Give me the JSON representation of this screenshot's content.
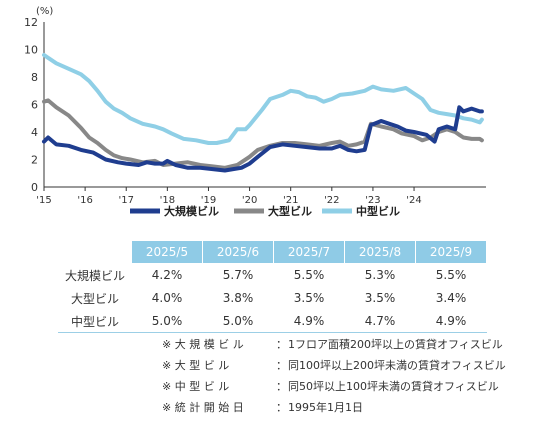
{
  "chart_data": {
    "type": "line",
    "y_unit": "(%)",
    "ylim": [
      0,
      12
    ],
    "y_ticks": [
      "0",
      "2",
      "4",
      "6",
      "8",
      "10",
      "12"
    ],
    "x_range": [
      2015.0,
      2025.75
    ],
    "x_ticks": [
      {
        "x": 2015,
        "label": "'15"
      },
      {
        "x": 2016,
        "label": "'16"
      },
      {
        "x": 2017,
        "label": "'17"
      },
      {
        "x": 2018,
        "label": "'18"
      },
      {
        "x": 2019,
        "label": "'19"
      },
      {
        "x": 2020,
        "label": "'20"
      },
      {
        "x": 2021,
        "label": "'21"
      },
      {
        "x": 2022,
        "label": "'22"
      },
      {
        "x": 2023,
        "label": "'23"
      },
      {
        "x": 2024,
        "label": "'24"
      }
    ],
    "grid": false,
    "legend_position": "bottom",
    "series": [
      {
        "name": "大規模ビル",
        "color": "#1f3d8f",
        "points": [
          [
            2015.0,
            3.3
          ],
          [
            2015.1,
            3.6
          ],
          [
            2015.3,
            3.1
          ],
          [
            2015.6,
            3.0
          ],
          [
            2015.9,
            2.7
          ],
          [
            2016.2,
            2.5
          ],
          [
            2016.5,
            2.0
          ],
          [
            2016.8,
            1.8
          ],
          [
            2017.0,
            1.7
          ],
          [
            2017.3,
            1.6
          ],
          [
            2017.5,
            1.8
          ],
          [
            2017.7,
            1.7
          ],
          [
            2017.9,
            1.7
          ],
          [
            2018.0,
            1.9
          ],
          [
            2018.2,
            1.6
          ],
          [
            2018.5,
            1.4
          ],
          [
            2018.8,
            1.4
          ],
          [
            2019.1,
            1.3
          ],
          [
            2019.4,
            1.2
          ],
          [
            2019.6,
            1.3
          ],
          [
            2019.8,
            1.4
          ],
          [
            2020.0,
            1.7
          ],
          [
            2020.2,
            2.2
          ],
          [
            2020.5,
            2.9
          ],
          [
            2020.8,
            3.1
          ],
          [
            2021.1,
            3.0
          ],
          [
            2021.4,
            2.9
          ],
          [
            2021.7,
            2.8
          ],
          [
            2022.0,
            2.8
          ],
          [
            2022.2,
            3.0
          ],
          [
            2022.4,
            2.7
          ],
          [
            2022.6,
            2.6
          ],
          [
            2022.8,
            2.7
          ],
          [
            2022.95,
            4.5
          ],
          [
            2023.2,
            4.8
          ],
          [
            2023.4,
            4.6
          ],
          [
            2023.6,
            4.4
          ],
          [
            2023.8,
            4.1
          ],
          [
            2024.0,
            4.0
          ],
          [
            2024.3,
            3.8
          ],
          [
            2024.5,
            3.3
          ],
          [
            2024.6,
            4.2
          ],
          [
            2024.8,
            4.4
          ],
          [
            2025.0,
            4.2
          ],
          [
            2025.1,
            5.8
          ],
          [
            2025.2,
            5.5
          ],
          [
            2025.4,
            5.7
          ],
          [
            2025.6,
            5.5
          ],
          [
            2025.65,
            5.5
          ]
        ]
      },
      {
        "name": "大型ビル",
        "color": "#888888",
        "points": [
          [
            2015.0,
            6.2
          ],
          [
            2015.1,
            6.3
          ],
          [
            2015.3,
            5.8
          ],
          [
            2015.6,
            5.2
          ],
          [
            2015.9,
            4.3
          ],
          [
            2016.1,
            3.6
          ],
          [
            2016.3,
            3.2
          ],
          [
            2016.5,
            2.7
          ],
          [
            2016.7,
            2.3
          ],
          [
            2016.9,
            2.1
          ],
          [
            2017.1,
            2.0
          ],
          [
            2017.4,
            1.8
          ],
          [
            2017.7,
            1.9
          ],
          [
            2017.9,
            1.6
          ],
          [
            2018.2,
            1.7
          ],
          [
            2018.5,
            1.8
          ],
          [
            2018.8,
            1.6
          ],
          [
            2019.1,
            1.5
          ],
          [
            2019.4,
            1.4
          ],
          [
            2019.7,
            1.6
          ],
          [
            2020.0,
            2.2
          ],
          [
            2020.2,
            2.7
          ],
          [
            2020.5,
            3.0
          ],
          [
            2020.8,
            3.2
          ],
          [
            2021.1,
            3.2
          ],
          [
            2021.4,
            3.1
          ],
          [
            2021.7,
            3.0
          ],
          [
            2022.0,
            3.2
          ],
          [
            2022.2,
            3.3
          ],
          [
            2022.4,
            3.0
          ],
          [
            2022.6,
            3.1
          ],
          [
            2022.8,
            3.3
          ],
          [
            2022.95,
            4.6
          ],
          [
            2023.2,
            4.4
          ],
          [
            2023.5,
            4.2
          ],
          [
            2023.7,
            3.9
          ],
          [
            2024.0,
            3.7
          ],
          [
            2024.2,
            3.4
          ],
          [
            2024.4,
            3.6
          ],
          [
            2024.6,
            4.0
          ],
          [
            2024.8,
            4.2
          ],
          [
            2025.0,
            4.0
          ],
          [
            2025.1,
            3.8
          ],
          [
            2025.2,
            3.6
          ],
          [
            2025.4,
            3.5
          ],
          [
            2025.6,
            3.5
          ],
          [
            2025.65,
            3.4
          ]
        ]
      },
      {
        "name": "中型ビル",
        "color": "#8fcfe6",
        "points": [
          [
            2015.0,
            9.6
          ],
          [
            2015.1,
            9.4
          ],
          [
            2015.3,
            9.0
          ],
          [
            2015.6,
            8.6
          ],
          [
            2015.9,
            8.2
          ],
          [
            2016.1,
            7.7
          ],
          [
            2016.3,
            7.0
          ],
          [
            2016.5,
            6.2
          ],
          [
            2016.7,
            5.7
          ],
          [
            2016.9,
            5.4
          ],
          [
            2017.1,
            5.0
          ],
          [
            2017.4,
            4.6
          ],
          [
            2017.7,
            4.4
          ],
          [
            2017.9,
            4.2
          ],
          [
            2018.1,
            3.9
          ],
          [
            2018.4,
            3.5
          ],
          [
            2018.7,
            3.4
          ],
          [
            2019.0,
            3.2
          ],
          [
            2019.2,
            3.2
          ],
          [
            2019.5,
            3.4
          ],
          [
            2019.7,
            4.2
          ],
          [
            2019.9,
            4.2
          ],
          [
            2020.0,
            4.5
          ],
          [
            2020.3,
            5.6
          ],
          [
            2020.5,
            6.4
          ],
          [
            2020.8,
            6.7
          ],
          [
            2021.0,
            7.0
          ],
          [
            2021.2,
            6.9
          ],
          [
            2021.4,
            6.6
          ],
          [
            2021.6,
            6.5
          ],
          [
            2021.8,
            6.2
          ],
          [
            2022.0,
            6.4
          ],
          [
            2022.2,
            6.7
          ],
          [
            2022.5,
            6.8
          ],
          [
            2022.8,
            7.0
          ],
          [
            2023.0,
            7.3
          ],
          [
            2023.2,
            7.1
          ],
          [
            2023.5,
            7.0
          ],
          [
            2023.8,
            7.2
          ],
          [
            2024.0,
            6.8
          ],
          [
            2024.2,
            6.4
          ],
          [
            2024.4,
            5.6
          ],
          [
            2024.6,
            5.4
          ],
          [
            2024.8,
            5.3
          ],
          [
            2025.0,
            5.2
          ],
          [
            2025.2,
            5.0
          ],
          [
            2025.4,
            4.9
          ],
          [
            2025.6,
            4.7
          ],
          [
            2025.65,
            4.9
          ]
        ]
      }
    ]
  },
  "table": {
    "columns": [
      "2025/5",
      "2025/6",
      "2025/7",
      "2025/8",
      "2025/9"
    ],
    "rows": [
      {
        "label": "大規模ビル",
        "values": [
          "4.2%",
          "5.7%",
          "5.5%",
          "5.3%",
          "5.5%"
        ]
      },
      {
        "label": "大型ビル",
        "values": [
          "4.0%",
          "3.8%",
          "3.5%",
          "3.5%",
          "3.4%"
        ]
      },
      {
        "label": "中型ビル",
        "values": [
          "5.0%",
          "5.0%",
          "4.9%",
          "4.7%",
          "4.9%"
        ]
      }
    ]
  },
  "notes": [
    {
      "label": "※ 大 規 模 ビ ル",
      "sep": "：",
      "text": "1フロア面積200坪以上の賃貸オフィスビル"
    },
    {
      "label": "※ 大 型 ビ ル",
      "sep": "：",
      "text": "同100坪以上200坪未満の賃貸オフィスビル"
    },
    {
      "label": "※ 中 型 ビ ル",
      "sep": "：",
      "text": "同50坪以上100坪未満の賃貸オフィスビル"
    },
    {
      "label": "※ 統 計 開 始 日",
      "sep": "：",
      "text": "1995年1月1日"
    }
  ]
}
